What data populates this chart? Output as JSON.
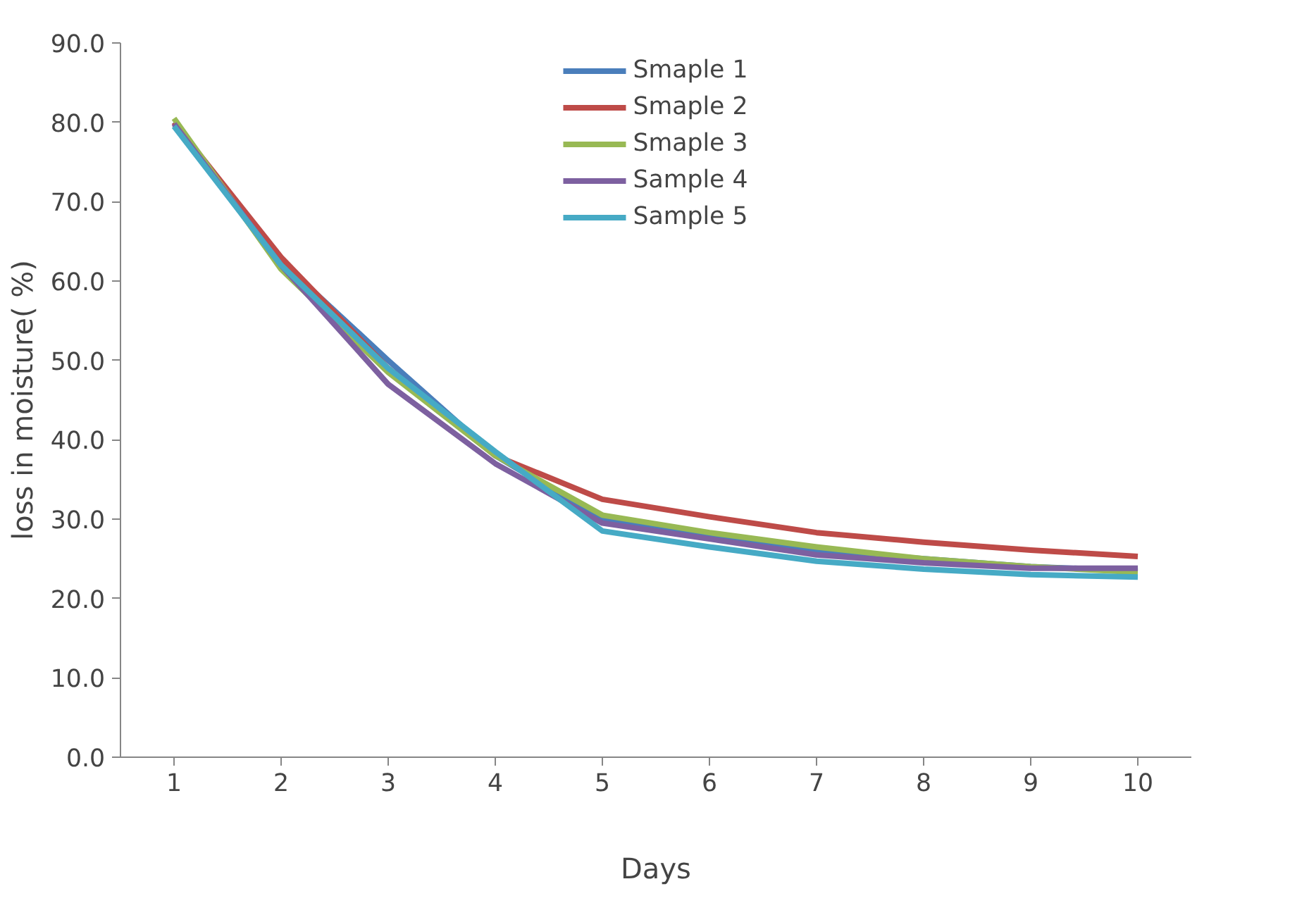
{
  "chart_data": {
    "type": "line",
    "xlabel": "Days",
    "ylabel": "loss in moisture( %)",
    "categories": [
      "1",
      "2",
      "3",
      "4",
      "5",
      "6",
      "7",
      "8",
      "9",
      "10"
    ],
    "ylim": [
      0,
      90
    ],
    "yticks": [
      {
        "value": 0,
        "label": "0.0"
      },
      {
        "value": 10,
        "label": "10.0"
      },
      {
        "value": 20,
        "label": "20.0"
      },
      {
        "value": 30,
        "label": "30.0"
      },
      {
        "value": 40,
        "label": "40.0"
      },
      {
        "value": 50,
        "label": "50.0"
      },
      {
        "value": 60,
        "label": "60.0"
      },
      {
        "value": 70,
        "label": "70.0"
      },
      {
        "value": 80,
        "label": "80.0"
      },
      {
        "value": 90,
        "label": "90.0"
      }
    ],
    "grid": false,
    "legend": "top",
    "marker": "none",
    "line_style": "solid",
    "series": [
      {
        "name": "Smaple 1",
        "color": "#4a7ebb",
        "values": [
          80,
          62.5,
          50,
          38,
          30,
          28,
          26,
          25,
          24,
          23.5
        ]
      },
      {
        "name": "Smaple 2",
        "color": "#be4b48",
        "values": [
          80,
          63,
          49,
          38,
          32.5,
          30.3,
          28.3,
          27.1,
          26.1,
          25.3
        ]
      },
      {
        "name": "Smaple 3",
        "color": "#98b954",
        "values": [
          80.5,
          61.5,
          48.5,
          38,
          30.5,
          28.3,
          26.5,
          25,
          24,
          23.3
        ]
      },
      {
        "name": "Sample 4",
        "color": "#7d60a0",
        "values": [
          79.8,
          62,
          47,
          37,
          29.5,
          27.5,
          25.5,
          24.5,
          23.8,
          23.8
        ]
      },
      {
        "name": "Sample 5",
        "color": "#46aac5",
        "values": [
          79.5,
          62,
          49,
          38.5,
          28.5,
          26.5,
          24.7,
          23.7,
          23,
          22.7
        ]
      }
    ]
  }
}
